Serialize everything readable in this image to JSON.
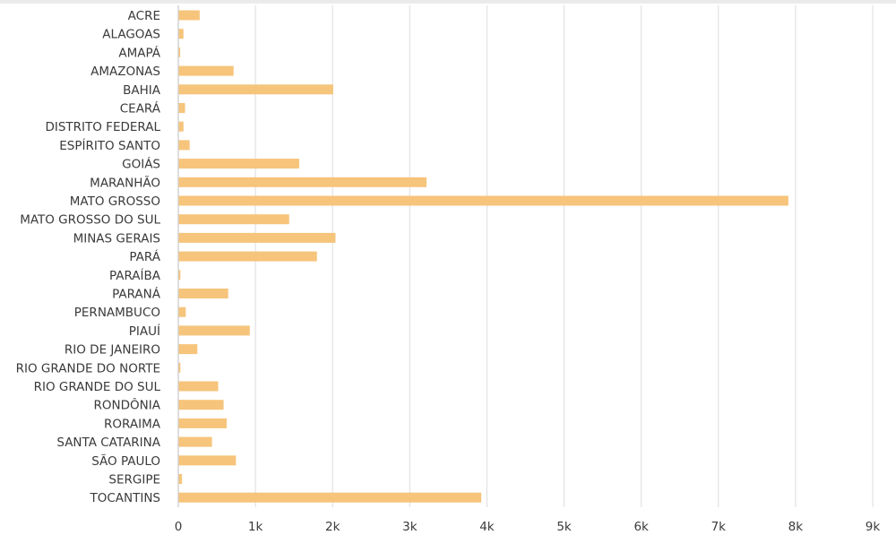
{
  "chart_data": {
    "type": "bar",
    "orientation": "horizontal",
    "categories": [
      "ACRE",
      "ALAGOAS",
      "AMAPÁ",
      "AMAZONAS",
      "BAHIA",
      "CEARÁ",
      "DISTRITO FEDERAL",
      "ESPÍRITO SANTO",
      "GOIÁS",
      "MARANHÃO",
      "MATO GROSSO",
      "MATO GROSSO DO SUL",
      "MINAS GERAIS",
      "PARÁ",
      "PARAÍBA",
      "PARANÁ",
      "PERNAMBUCO",
      "PIAUÍ",
      "RIO DE JANEIRO",
      "RIO GRANDE DO NORTE",
      "RIO GRANDE DO SUL",
      "RONDÔNIA",
      "RORAIMA",
      "SANTA CATARINA",
      "SÃO PAULO",
      "SERGIPE",
      "TOCANTINS"
    ],
    "values": [
      270,
      60,
      5,
      710,
      2000,
      80,
      60,
      140,
      1560,
      3210,
      7900,
      1430,
      2030,
      1790,
      20,
      640,
      90,
      920,
      240,
      20,
      510,
      580,
      620,
      430,
      740,
      40,
      3920
    ],
    "x_ticks": [
      0,
      1000,
      2000,
      3000,
      4000,
      5000,
      6000,
      7000,
      8000,
      9000
    ],
    "x_tick_labels": [
      "0",
      "1k",
      "2k",
      "3k",
      "4k",
      "5k",
      "6k",
      "7k",
      "8k",
      "9k"
    ],
    "xlim": [
      0,
      9000
    ],
    "grid": true,
    "bar_color": "#f6c47b",
    "title": "",
    "xlabel": "",
    "ylabel": ""
  }
}
